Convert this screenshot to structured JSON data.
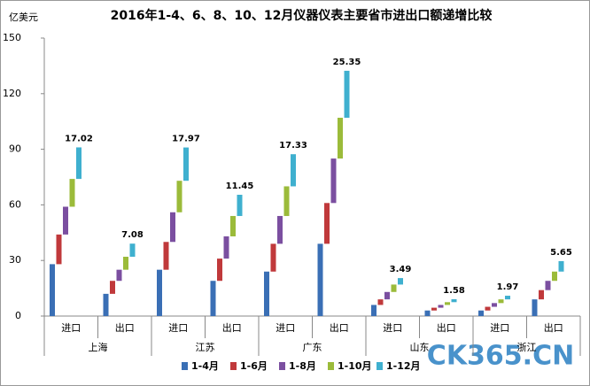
{
  "chart_data": {
    "type": "waterfall-group",
    "title": "2016年1-4、6、8、10、12月仪器仪表主要省市进出口额递增比较",
    "y_label": "亿美元",
    "categories": [
      "进口",
      "出口",
      "进口",
      "出口",
      "进口",
      "出口",
      "进口",
      "出口",
      "进口",
      "出口"
    ],
    "groups": [
      "上海",
      "江苏",
      "广东",
      "山东",
      "浙江"
    ],
    "ylim": [
      0,
      150
    ],
    "yticks": [
      0,
      30,
      60,
      90,
      120,
      150
    ],
    "series": [
      {
        "name": "1-4月",
        "color": "#3a6fb5",
        "values": [
          28,
          12,
          25,
          19,
          24,
          39,
          6,
          3,
          3,
          9
        ]
      },
      {
        "name": "1-6月",
        "color": "#c0393b",
        "values": [
          16,
          7,
          15,
          12,
          15,
          22,
          3,
          1.5,
          2,
          5
        ]
      },
      {
        "name": "1-8月",
        "color": "#7b4fa0",
        "values": [
          15,
          6,
          16,
          12,
          15,
          24,
          4,
          1.5,
          2,
          5
        ]
      },
      {
        "name": "1-10月",
        "color": "#9bbb3a",
        "values": [
          15,
          7,
          17,
          11,
          16,
          22,
          4,
          1.5,
          2,
          5
        ]
      },
      {
        "name": "1-12月",
        "color": "#3fb0cf",
        "values": [
          17.02,
          7.08,
          17.97,
          11.45,
          17.33,
          25.35,
          3.49,
          1.58,
          1.97,
          5.65
        ]
      }
    ],
    "labeled_series": 4,
    "watermark": "CK365.CN"
  }
}
